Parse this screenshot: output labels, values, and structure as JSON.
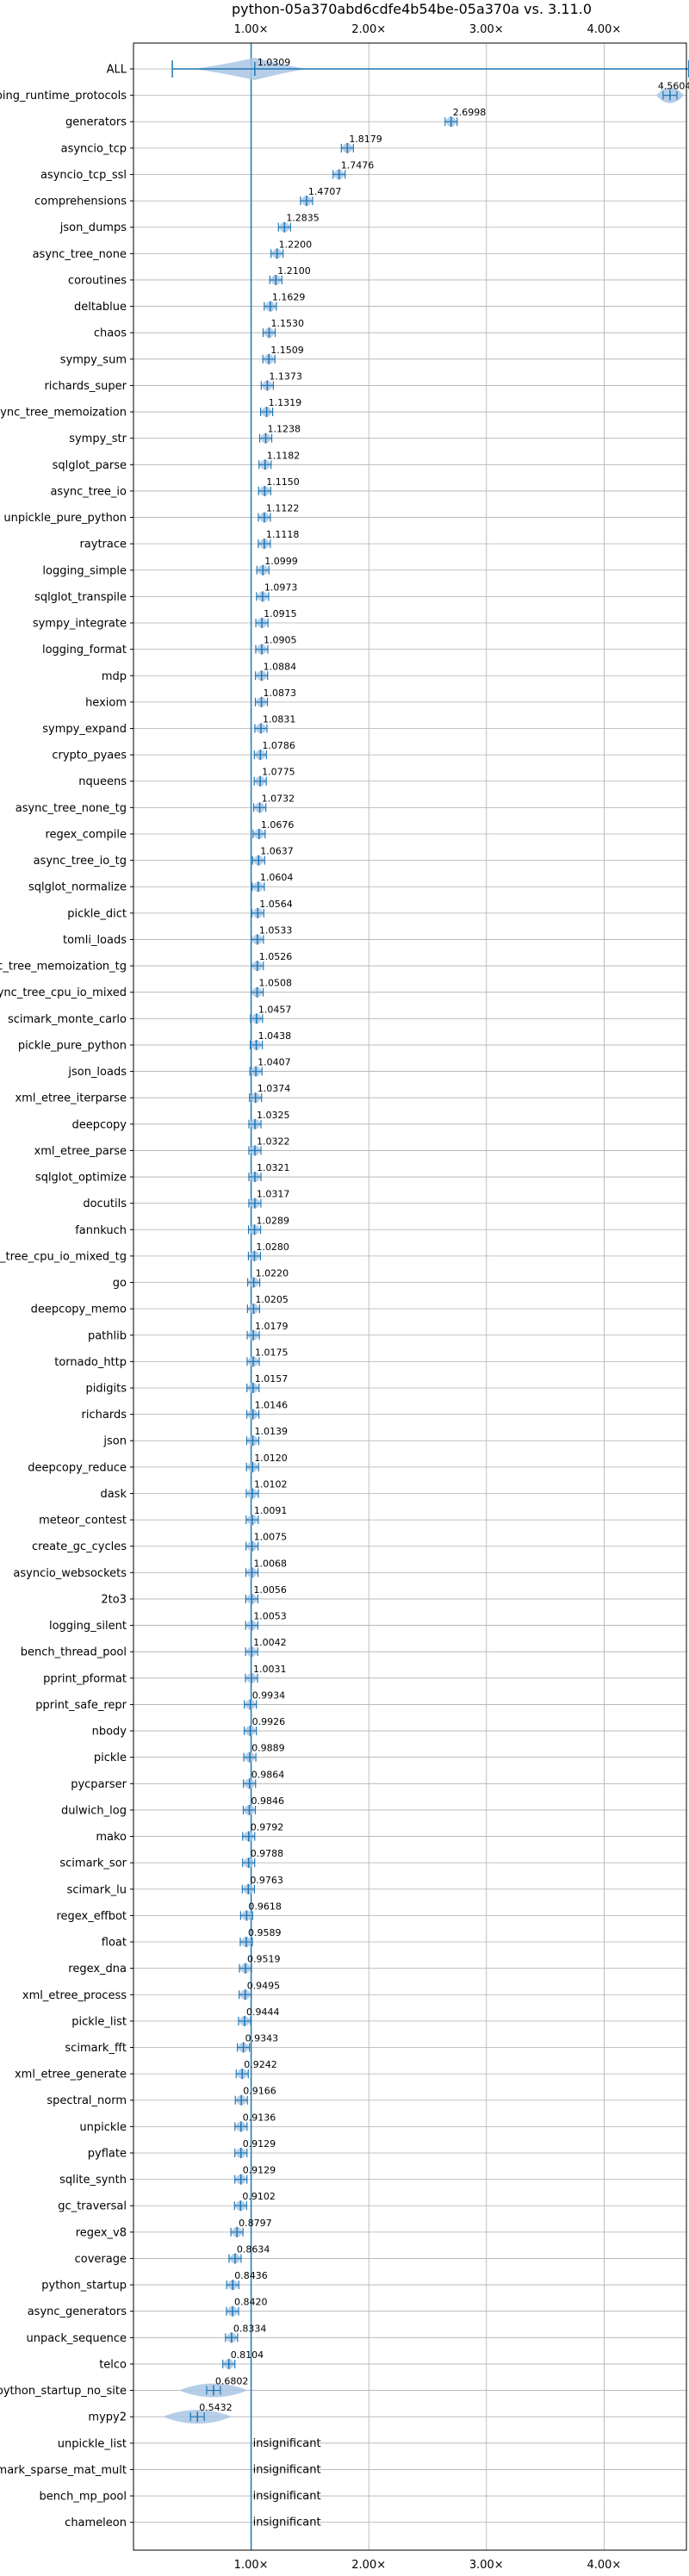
{
  "chart_data": {
    "type": "violin",
    "title": "python-05a370abd6cdfe4b54be-05a370a vs. 3.11.0",
    "xlim": [
      0.0,
      4.7
    ],
    "xticks": [
      {
        "value": 1.0,
        "label": "1.00×"
      },
      {
        "value": 2.0,
        "label": "2.00×"
      },
      {
        "value": 3.0,
        "label": "3.00×"
      },
      {
        "value": 4.0,
        "label": "4.00×"
      }
    ],
    "reference_line": 1.0,
    "grid": true,
    "colors": {
      "violin": "#a9c6e4",
      "marker": "#1f77b4",
      "grid": "#b0b0b0"
    },
    "overall": {
      "name": "ALL",
      "mean": 1.0309,
      "min": 0.33,
      "max": 4.72,
      "label": "1.0309"
    },
    "benchmarks": [
      {
        "name": "typing_runtime_protocols",
        "value": 4.5604,
        "label": "4.5604"
      },
      {
        "name": "generators",
        "value": 2.6998,
        "label": "2.6998"
      },
      {
        "name": "asyncio_tcp",
        "value": 1.8179,
        "label": "1.8179"
      },
      {
        "name": "asyncio_tcp_ssl",
        "value": 1.7476,
        "label": "1.7476"
      },
      {
        "name": "comprehensions",
        "value": 1.4707,
        "label": "1.4707"
      },
      {
        "name": "json_dumps",
        "value": 1.2835,
        "label": "1.2835"
      },
      {
        "name": "async_tree_none",
        "value": 1.22,
        "label": "1.2200"
      },
      {
        "name": "coroutines",
        "value": 1.21,
        "label": "1.2100"
      },
      {
        "name": "deltablue",
        "value": 1.1629,
        "label": "1.1629"
      },
      {
        "name": "chaos",
        "value": 1.153,
        "label": "1.1530"
      },
      {
        "name": "sympy_sum",
        "value": 1.1509,
        "label": "1.1509"
      },
      {
        "name": "richards_super",
        "value": 1.1373,
        "label": "1.1373"
      },
      {
        "name": "async_tree_memoization",
        "value": 1.1319,
        "label": "1.1319"
      },
      {
        "name": "sympy_str",
        "value": 1.1238,
        "label": "1.1238"
      },
      {
        "name": "sqlglot_parse",
        "value": 1.1182,
        "label": "1.1182"
      },
      {
        "name": "async_tree_io",
        "value": 1.115,
        "label": "1.1150"
      },
      {
        "name": "unpickle_pure_python",
        "value": 1.1122,
        "label": "1.1122"
      },
      {
        "name": "raytrace",
        "value": 1.1118,
        "label": "1.1118"
      },
      {
        "name": "logging_simple",
        "value": 1.0999,
        "label": "1.0999"
      },
      {
        "name": "sqlglot_transpile",
        "value": 1.0973,
        "label": "1.0973"
      },
      {
        "name": "sympy_integrate",
        "value": 1.0915,
        "label": "1.0915"
      },
      {
        "name": "logging_format",
        "value": 1.0905,
        "label": "1.0905"
      },
      {
        "name": "mdp",
        "value": 1.0884,
        "label": "1.0884"
      },
      {
        "name": "hexiom",
        "value": 1.0873,
        "label": "1.0873"
      },
      {
        "name": "sympy_expand",
        "value": 1.0831,
        "label": "1.0831"
      },
      {
        "name": "crypto_pyaes",
        "value": 1.0786,
        "label": "1.0786"
      },
      {
        "name": "nqueens",
        "value": 1.0775,
        "label": "1.0775"
      },
      {
        "name": "async_tree_none_tg",
        "value": 1.0732,
        "label": "1.0732"
      },
      {
        "name": "regex_compile",
        "value": 1.0676,
        "label": "1.0676"
      },
      {
        "name": "async_tree_io_tg",
        "value": 1.0637,
        "label": "1.0637"
      },
      {
        "name": "sqlglot_normalize",
        "value": 1.0604,
        "label": "1.0604"
      },
      {
        "name": "pickle_dict",
        "value": 1.0564,
        "label": "1.0564"
      },
      {
        "name": "tomli_loads",
        "value": 1.0533,
        "label": "1.0533"
      },
      {
        "name": "async_tree_memoization_tg",
        "value": 1.0526,
        "label": "1.0526"
      },
      {
        "name": "async_tree_cpu_io_mixed",
        "value": 1.0508,
        "label": "1.0508"
      },
      {
        "name": "scimark_monte_carlo",
        "value": 1.0457,
        "label": "1.0457"
      },
      {
        "name": "pickle_pure_python",
        "value": 1.0438,
        "label": "1.0438"
      },
      {
        "name": "json_loads",
        "value": 1.0407,
        "label": "1.0407"
      },
      {
        "name": "xml_etree_iterparse",
        "value": 1.0374,
        "label": "1.0374"
      },
      {
        "name": "deepcopy",
        "value": 1.0325,
        "label": "1.0325"
      },
      {
        "name": "xml_etree_parse",
        "value": 1.0322,
        "label": "1.0322"
      },
      {
        "name": "sqlglot_optimize",
        "value": 1.0321,
        "label": "1.0321"
      },
      {
        "name": "docutils",
        "value": 1.0317,
        "label": "1.0317"
      },
      {
        "name": "fannkuch",
        "value": 1.0289,
        "label": "1.0289"
      },
      {
        "name": "async_tree_cpu_io_mixed_tg",
        "value": 1.028,
        "label": "1.0280"
      },
      {
        "name": "go",
        "value": 1.022,
        "label": "1.0220"
      },
      {
        "name": "deepcopy_memo",
        "value": 1.0205,
        "label": "1.0205"
      },
      {
        "name": "pathlib",
        "value": 1.0179,
        "label": "1.0179"
      },
      {
        "name": "tornado_http",
        "value": 1.0175,
        "label": "1.0175"
      },
      {
        "name": "pidigits",
        "value": 1.0157,
        "label": "1.0157"
      },
      {
        "name": "richards",
        "value": 1.0146,
        "label": "1.0146"
      },
      {
        "name": "json",
        "value": 1.0139,
        "label": "1.0139"
      },
      {
        "name": "deepcopy_reduce",
        "value": 1.012,
        "label": "1.0120"
      },
      {
        "name": "dask",
        "value": 1.0102,
        "label": "1.0102"
      },
      {
        "name": "meteor_contest",
        "value": 1.0091,
        "label": "1.0091"
      },
      {
        "name": "create_gc_cycles",
        "value": 1.0075,
        "label": "1.0075"
      },
      {
        "name": "asyncio_websockets",
        "value": 1.0068,
        "label": "1.0068"
      },
      {
        "name": "2to3",
        "value": 1.0056,
        "label": "1.0056"
      },
      {
        "name": "logging_silent",
        "value": 1.0053,
        "label": "1.0053"
      },
      {
        "name": "bench_thread_pool",
        "value": 1.0042,
        "label": "1.0042"
      },
      {
        "name": "pprint_pformat",
        "value": 1.0031,
        "label": "1.0031"
      },
      {
        "name": "pprint_safe_repr",
        "value": 0.9934,
        "label": "0.9934"
      },
      {
        "name": "nbody",
        "value": 0.9926,
        "label": "0.9926"
      },
      {
        "name": "pickle",
        "value": 0.9889,
        "label": "0.9889"
      },
      {
        "name": "pycparser",
        "value": 0.9864,
        "label": "0.9864"
      },
      {
        "name": "dulwich_log",
        "value": 0.9846,
        "label": "0.9846"
      },
      {
        "name": "mako",
        "value": 0.9792,
        "label": "0.9792"
      },
      {
        "name": "scimark_sor",
        "value": 0.9788,
        "label": "0.9788"
      },
      {
        "name": "scimark_lu",
        "value": 0.9763,
        "label": "0.9763"
      },
      {
        "name": "regex_effbot",
        "value": 0.9618,
        "label": "0.9618"
      },
      {
        "name": "float",
        "value": 0.9589,
        "label": "0.9589"
      },
      {
        "name": "regex_dna",
        "value": 0.9519,
        "label": "0.9519"
      },
      {
        "name": "xml_etree_process",
        "value": 0.9495,
        "label": "0.9495"
      },
      {
        "name": "pickle_list",
        "value": 0.9444,
        "label": "0.9444"
      },
      {
        "name": "scimark_fft",
        "value": 0.9343,
        "label": "0.9343"
      },
      {
        "name": "xml_etree_generate",
        "value": 0.9242,
        "label": "0.9242"
      },
      {
        "name": "spectral_norm",
        "value": 0.9166,
        "label": "0.9166"
      },
      {
        "name": "unpickle",
        "value": 0.9136,
        "label": "0.9136"
      },
      {
        "name": "pyflate",
        "value": 0.9129,
        "label": "0.9129"
      },
      {
        "name": "sqlite_synth",
        "value": 0.9129,
        "label": "0.9129"
      },
      {
        "name": "gc_traversal",
        "value": 0.9102,
        "label": "0.9102"
      },
      {
        "name": "regex_v8",
        "value": 0.8797,
        "label": "0.8797"
      },
      {
        "name": "coverage",
        "value": 0.8634,
        "label": "0.8634"
      },
      {
        "name": "python_startup",
        "value": 0.8436,
        "label": "0.8436"
      },
      {
        "name": "async_generators",
        "value": 0.842,
        "label": "0.8420"
      },
      {
        "name": "unpack_sequence",
        "value": 0.8334,
        "label": "0.8334"
      },
      {
        "name": "telco",
        "value": 0.8104,
        "label": "0.8104"
      },
      {
        "name": "python_startup_no_site",
        "value": 0.6802,
        "label": "0.6802"
      },
      {
        "name": "mypy2",
        "value": 0.5432,
        "label": "0.5432"
      },
      {
        "name": "unpickle_list",
        "value": 1.0,
        "label": "insignificant"
      },
      {
        "name": "scimark_sparse_mat_mult",
        "value": 1.0,
        "label": "insignificant"
      },
      {
        "name": "bench_mp_pool",
        "value": 1.0,
        "label": "insignificant"
      },
      {
        "name": "chameleon",
        "value": 1.0,
        "label": "insignificant"
      }
    ]
  }
}
